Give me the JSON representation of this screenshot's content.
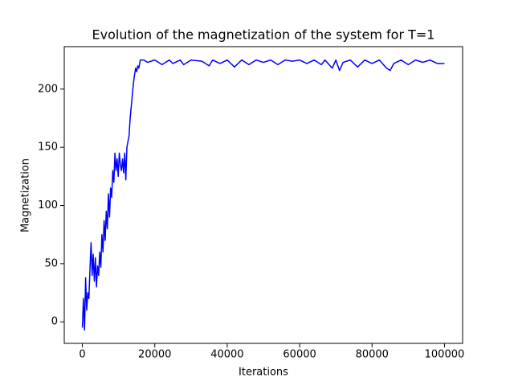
{
  "chart_data": {
    "type": "line",
    "title": "Evolution of the magnetization of the system for T=1",
    "xlabel": "Iterations",
    "ylabel": "Magnetization",
    "color": "#0000ff",
    "x": [
      0,
      300,
      600,
      900,
      1200,
      1500,
      1800,
      2100,
      2400,
      2700,
      3000,
      3300,
      3600,
      3900,
      4200,
      4500,
      4800,
      5100,
      5400,
      5700,
      6000,
      6300,
      6600,
      6900,
      7200,
      7500,
      7800,
      8100,
      8400,
      8700,
      9000,
      9300,
      9600,
      9900,
      10200,
      10500,
      10800,
      11100,
      11400,
      11700,
      12000,
      12300,
      12600,
      12900,
      13200,
      13500,
      13800,
      14100,
      14400,
      14700,
      15000,
      15300,
      15600,
      16000,
      17000,
      18000,
      20000,
      22000,
      24000,
      25000,
      27000,
      28000,
      30000,
      33000,
      35000,
      36000,
      38000,
      40000,
      42000,
      44000,
      46000,
      48000,
      50000,
      52000,
      54000,
      56000,
      58000,
      60000,
      62000,
      64000,
      66000,
      67000,
      69000,
      70000,
      71000,
      72000,
      74000,
      76000,
      78000,
      80000,
      82000,
      84000,
      85000,
      86000,
      88000,
      90000,
      92000,
      94000,
      96000,
      98000,
      100000
    ],
    "values": [
      -5,
      20,
      -7,
      38,
      10,
      25,
      20,
      45,
      68,
      40,
      58,
      35,
      55,
      30,
      48,
      40,
      60,
      47,
      75,
      60,
      87,
      70,
      95,
      80,
      110,
      90,
      115,
      107,
      130,
      120,
      145,
      130,
      140,
      125,
      145,
      135,
      130,
      140,
      128,
      145,
      122,
      150,
      155,
      160,
      175,
      185,
      195,
      205,
      212,
      218,
      215,
      220,
      218,
      225,
      225,
      223,
      225,
      221,
      225,
      222,
      225,
      221,
      225,
      224,
      220,
      225,
      222,
      225,
      219,
      225,
      221,
      225,
      223,
      225,
      221,
      225,
      224,
      225,
      222,
      225,
      221,
      225,
      218,
      225,
      216,
      223,
      225,
      219,
      225,
      222,
      225,
      218,
      216,
      222,
      225,
      221,
      225,
      223,
      225,
      222,
      222
    ],
    "xlim": [
      -5000,
      105000
    ],
    "ylim": [
      -18.5,
      236.5
    ],
    "xticks": [
      0,
      20000,
      40000,
      60000,
      80000,
      100000
    ],
    "yticks": [
      0,
      50,
      100,
      150,
      200
    ]
  }
}
